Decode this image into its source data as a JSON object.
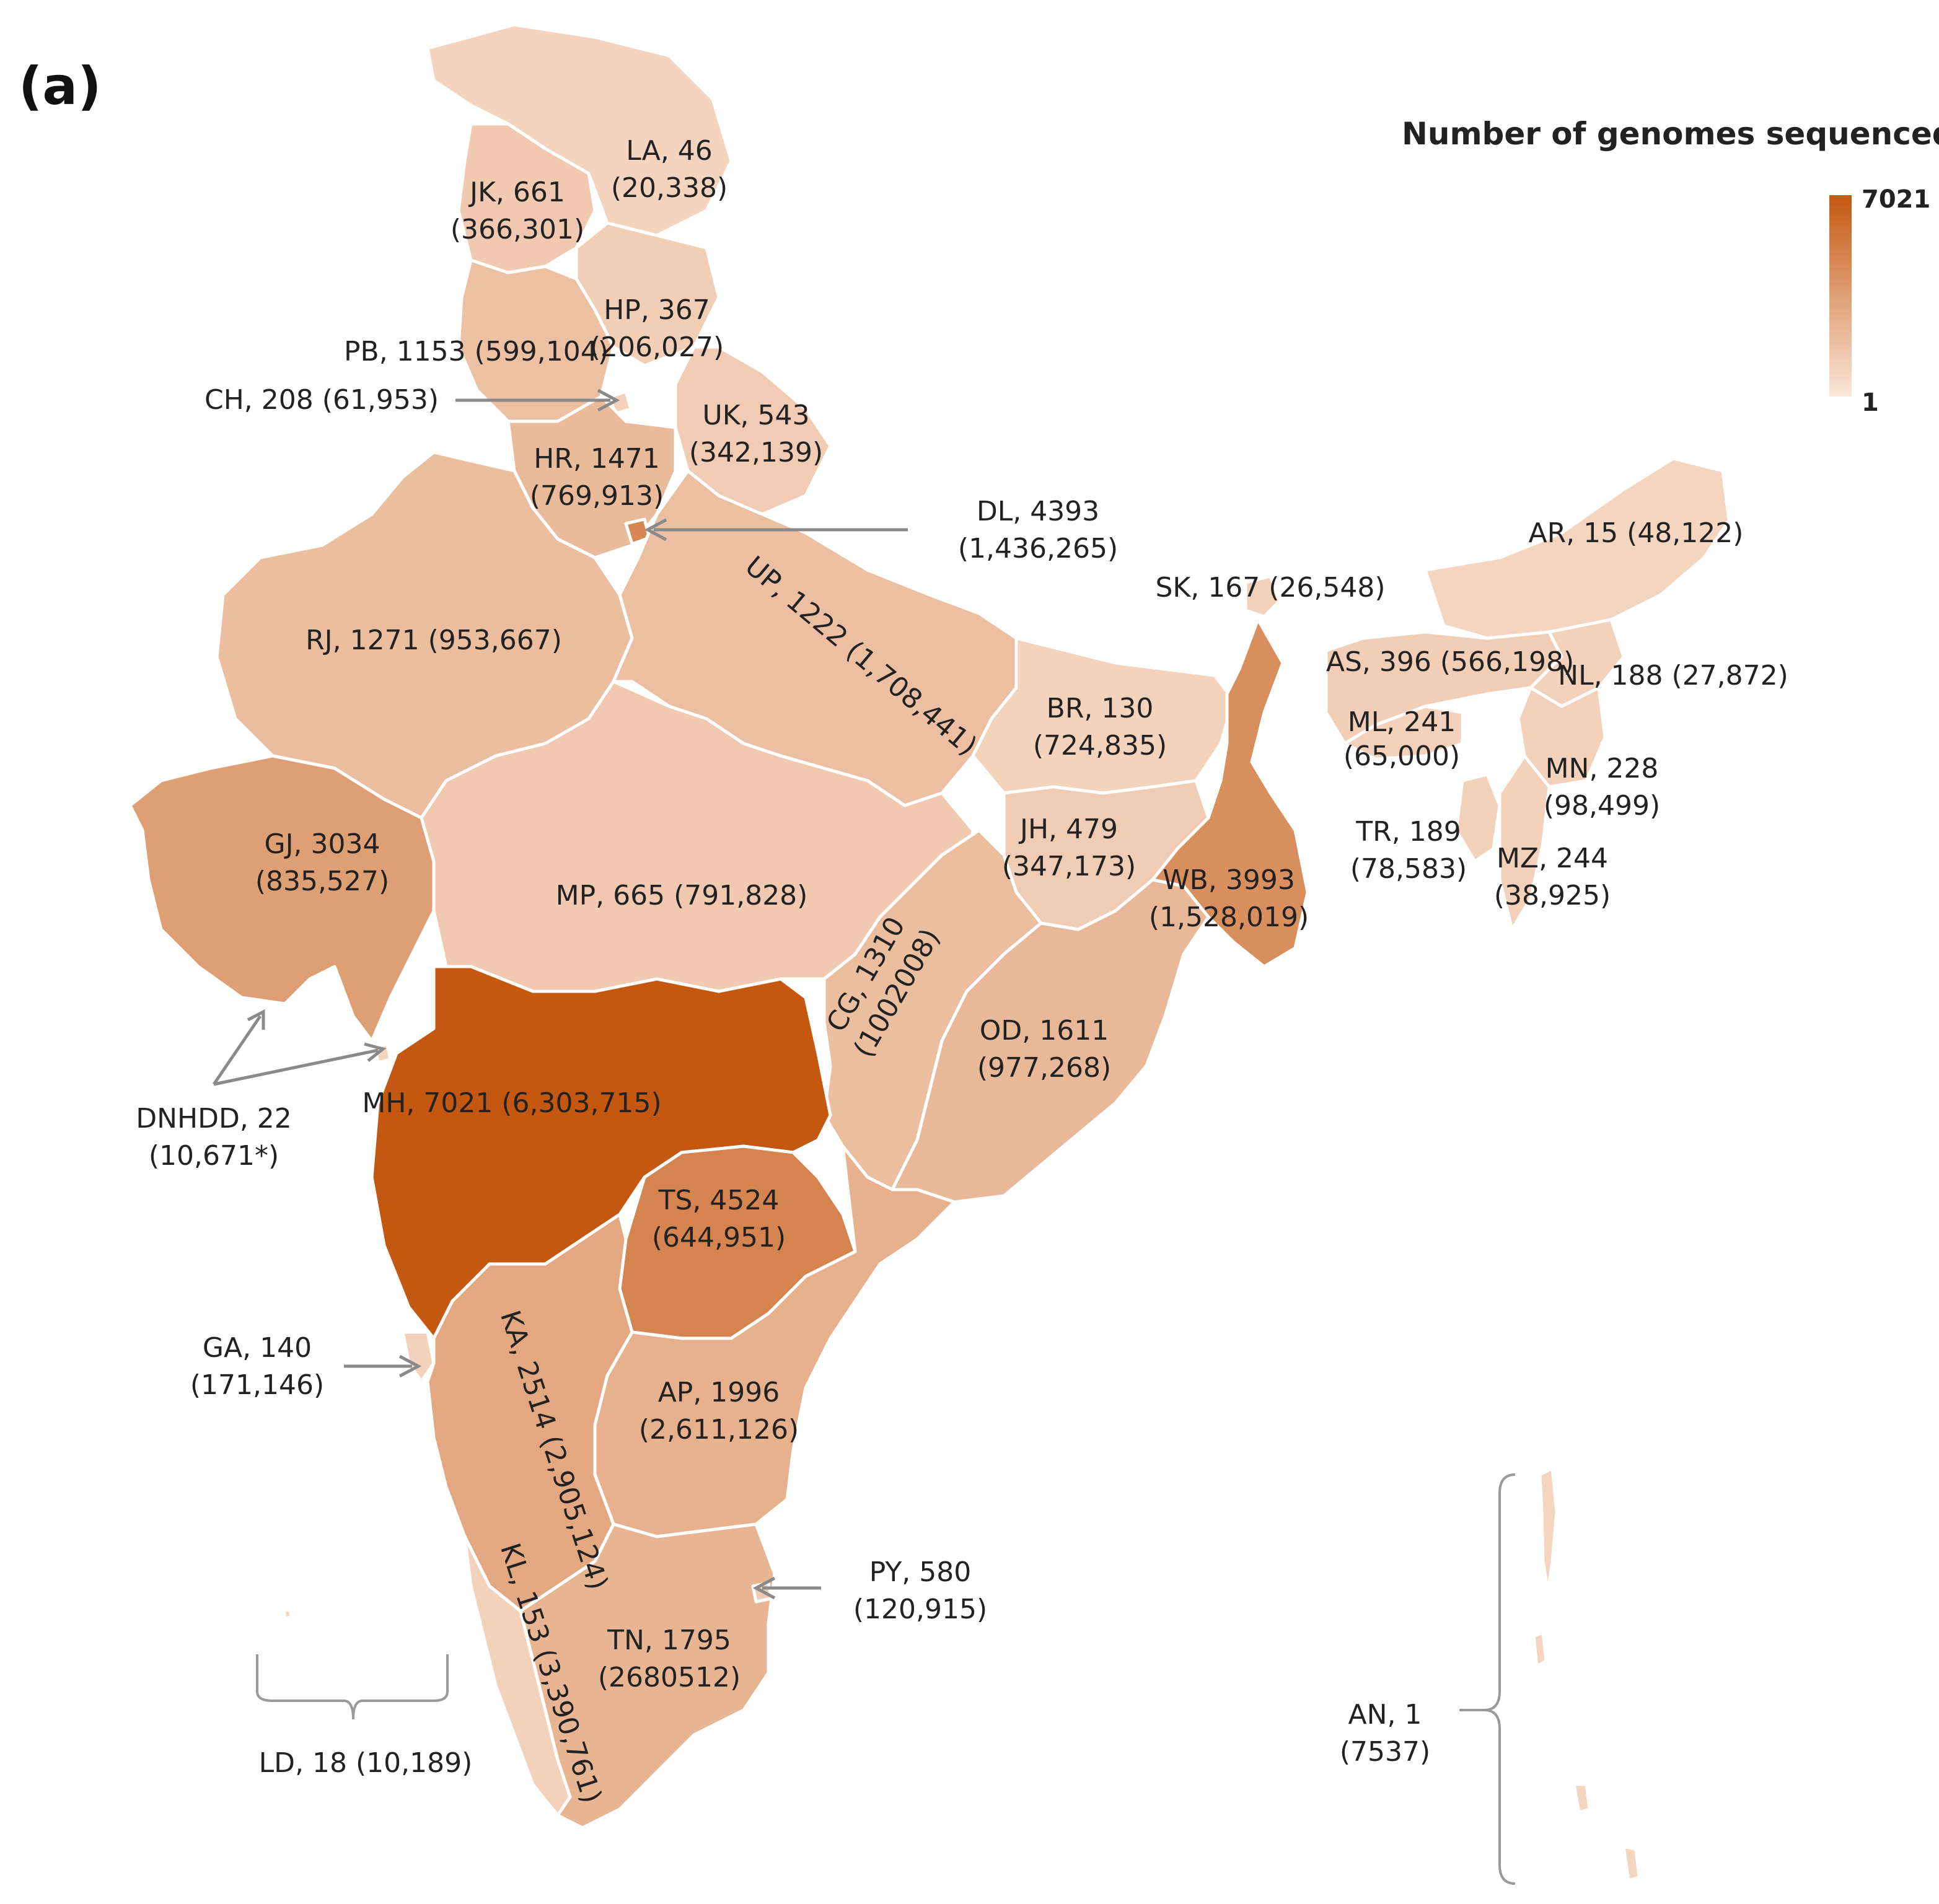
{
  "panel_label": "(a)",
  "legend": {
    "title": "Number of genomes sequenced",
    "max_label": "7021",
    "min_label": "1",
    "min": 1,
    "max": 7021,
    "color_low": "#fbe6d8",
    "color_high": "#c45811"
  },
  "states": {
    "LA": {
      "l1": "LA, 46",
      "l2": "(20,338)",
      "value": 46
    },
    "JK": {
      "l1": "JK, 661",
      "l2": "(366,301)",
      "value": 661
    },
    "HP": {
      "l1": "HP, 367",
      "l2": "(206,027)",
      "value": 367
    },
    "PB": {
      "l1": "PB, 1153 (599,104)",
      "value": 1153
    },
    "CH": {
      "l1": "CH, 208 (61,953)",
      "value": 208
    },
    "UK": {
      "l1": "UK, 543",
      "l2": "(342,139)",
      "value": 543
    },
    "HR": {
      "l1": "HR, 1471",
      "l2": "(769,913)",
      "value": 1471
    },
    "DL": {
      "l1": "DL, 4393",
      "l2": "(1,436,265)",
      "value": 4393
    },
    "UP": {
      "l1": "UP, 1222 (1,708,441)",
      "value": 1222
    },
    "RJ": {
      "l1": "RJ, 1271 (953,667)",
      "value": 1271
    },
    "SK": {
      "l1": "SK, 167 (26,548)",
      "value": 167
    },
    "AR": {
      "l1": "AR, 15 (48,122)",
      "value": 15
    },
    "AS": {
      "l1": "AS, 396 (566,198)",
      "value": 396
    },
    "NL": {
      "l1": "NL, 188 (27,872)",
      "value": 188
    },
    "BR": {
      "l1": "BR, 130",
      "l2": "(724,835)",
      "value": 130
    },
    "ML": {
      "l1": "ML, 241",
      "l2": "(65,000)",
      "value": 241
    },
    "MN": {
      "l1": "MN, 228",
      "l2": "(98,499)",
      "value": 228
    },
    "JH": {
      "l1": "JH, 479",
      "l2": "(347,173)",
      "value": 479
    },
    "TR": {
      "l1": "TR, 189",
      "l2": "(78,583)",
      "value": 189
    },
    "MZ": {
      "l1": "MZ, 244",
      "l2": "(38,925)",
      "value": 244
    },
    "GJ": {
      "l1": "GJ, 3034",
      "l2": "(835,527)",
      "value": 3034
    },
    "MP": {
      "l1": "MP, 665 (791,828)",
      "value": 665
    },
    "WB": {
      "l1": "WB, 3993",
      "l2": "(1,528,019)",
      "value": 3993
    },
    "CG": {
      "l1": "CG, 1310",
      "l2": "(1002008)",
      "value": 1310
    },
    "OD": {
      "l1": "OD, 1611",
      "l2": "(977,268)",
      "value": 1611
    },
    "MH": {
      "l1": "MH, 7021 (6,303,715)",
      "value": 7021
    },
    "DNHDD": {
      "l1": "DNHDD, 22",
      "l2": "(10,671*)",
      "value": 22
    },
    "TS": {
      "l1": "TS, 4524",
      "l2": "(644,951)",
      "value": 4524
    },
    "GA": {
      "l1": "GA, 140",
      "l2": "(171,146)",
      "value": 140
    },
    "KA": {
      "l1": "KA, 2514 (2,905,124)",
      "value": 2514
    },
    "AP": {
      "l1": "AP, 1996",
      "l2": "(2,611,126)",
      "value": 1996
    },
    "PY": {
      "l1": "PY, 580",
      "l2": "(120,915)",
      "value": 580
    },
    "KL": {
      "l1": "KL, 153 (3,390,761)",
      "value": 153
    },
    "TN": {
      "l1": "TN, 1795",
      "l2": "(2680512)",
      "value": 1795
    },
    "LD": {
      "l1": "LD, 18 (10,189)",
      "value": 18
    },
    "AN": {
      "l1": "AN, 1",
      "l2": "(7537)",
      "value": 1
    }
  }
}
